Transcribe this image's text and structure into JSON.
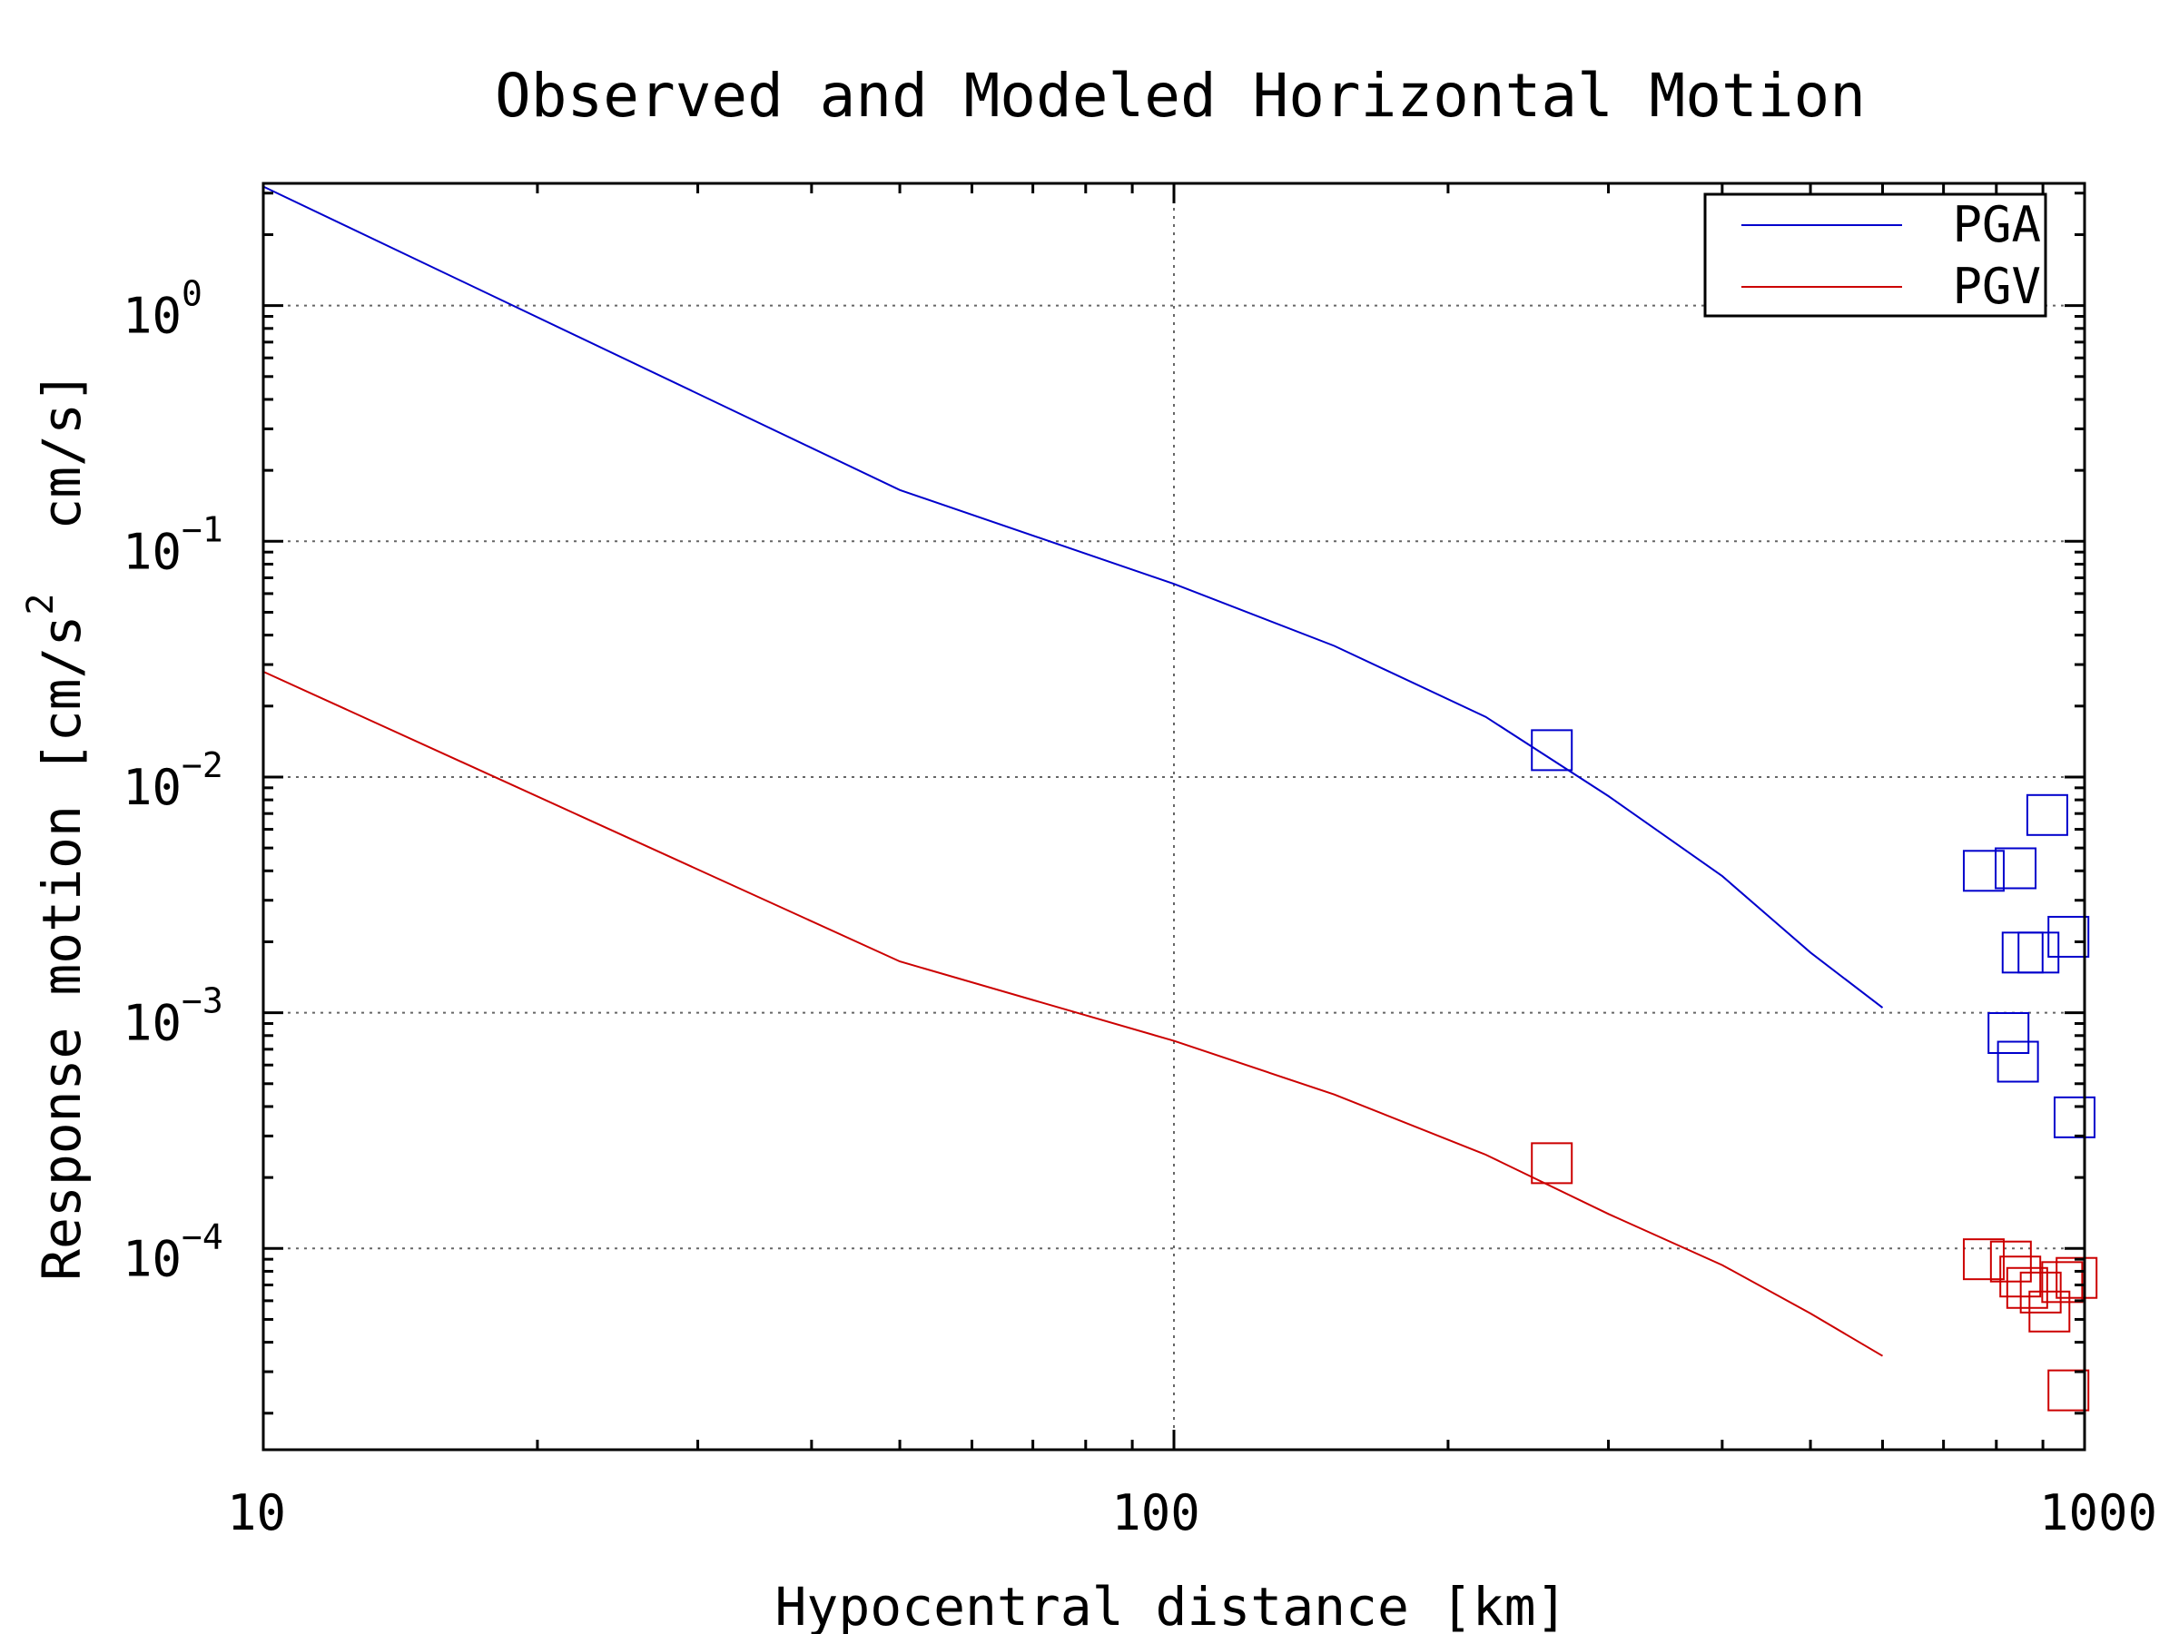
{
  "chart_data": {
    "type": "line",
    "title": "Observed and Modeled Horizontal Motion",
    "xlabel": "Hypocentral distance [km]",
    "ylabel": "Response motion [cm/s² cm/s]",
    "ylabel_parts": {
      "before": "Response motion [cm/s",
      "sup": "2",
      "after": "  cm/s]"
    },
    "x_scale": "log",
    "y_scale": "log",
    "xlim": [
      10,
      1000
    ],
    "ylim": [
      1.4e-05,
      3.3
    ],
    "x_ticks": [
      {
        "value": 10,
        "label": "10"
      },
      {
        "value": 100,
        "label": "100"
      },
      {
        "value": 1000,
        "label": "1000"
      }
    ],
    "y_ticks": [
      {
        "value": 1,
        "base": "10",
        "exp": "0"
      },
      {
        "value": 0.1,
        "base": "10",
        "exp": "−1"
      },
      {
        "value": 0.01,
        "base": "10",
        "exp": "−2"
      },
      {
        "value": 0.001,
        "base": "10",
        "exp": "−3"
      },
      {
        "value": 0.0001,
        "base": "10",
        "exp": "−4"
      }
    ],
    "grid": true,
    "legend_position": "top-right",
    "series": [
      {
        "name": "PGA",
        "color": "#0000cc",
        "line": {
          "x": [
            10,
            50,
            100,
            150,
            220,
            300,
            400,
            500,
            600
          ],
          "y": [
            3.2,
            0.165,
            0.066,
            0.036,
            0.018,
            0.0083,
            0.0038,
            0.0018,
            0.00105
          ]
        },
        "observed": {
          "x": [
            260,
            775,
            840,
            910,
            855,
            890,
            960,
            825,
            845,
            975
          ],
          "y": [
            0.013,
            0.004,
            0.0041,
            0.0069,
            0.0018,
            0.0018,
            0.0021,
            0.00082,
            0.00062,
            0.00036
          ]
        }
      },
      {
        "name": "PGV",
        "color": "#cc0000",
        "line": {
          "x": [
            10,
            50,
            100,
            150,
            220,
            300,
            400,
            500,
            600
          ],
          "y": [
            0.028,
            0.00165,
            0.00076,
            0.00045,
            0.00025,
            0.00014,
            8.5e-05,
            5.3e-05,
            3.5e-05
          ]
        },
        "observed": {
          "x": [
            260,
            775,
            830,
            850,
            865,
            895,
            915,
            945,
            980,
            960
          ],
          "y": [
            0.00023,
            9e-05,
            8.8e-05,
            7.6e-05,
            6.8e-05,
            6.5e-05,
            5.4e-05,
            7.2e-05,
            7.5e-05,
            2.5e-05
          ]
        }
      }
    ]
  }
}
